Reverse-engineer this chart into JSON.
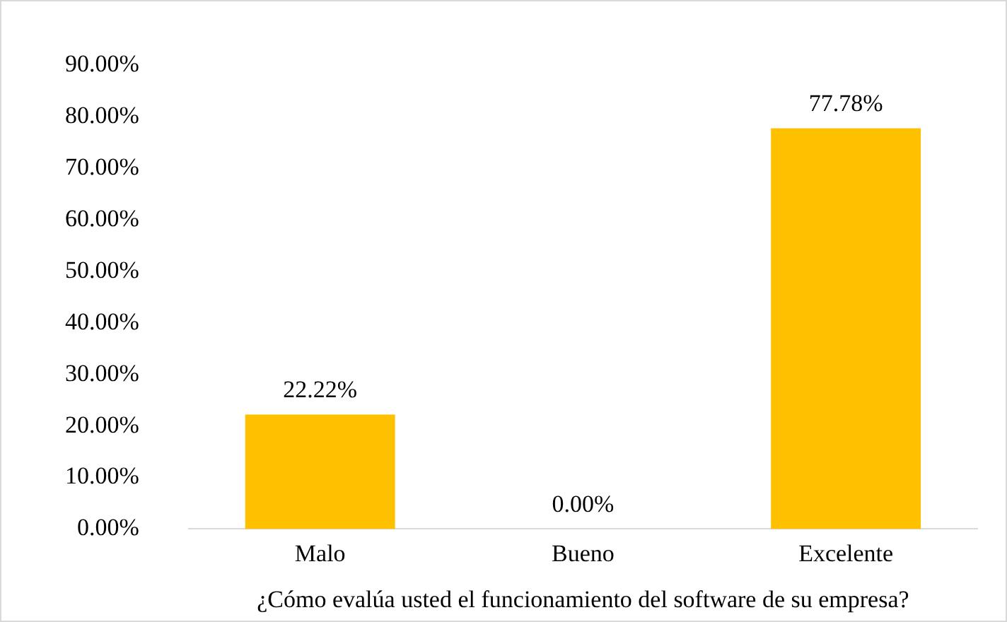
{
  "chart_data": {
    "type": "bar",
    "xlabel": "¿Cómo evalúa usted el funcionamiento del software de su empresa?",
    "categories": [
      "Malo",
      "Bueno",
      "Excelente"
    ],
    "values": [
      22.22,
      0,
      77.78
    ],
    "value_labels": [
      "22.22%",
      "0.00%",
      "77.78%"
    ],
    "color": "#ffc000",
    "ylim": [
      0,
      90
    ],
    "yticks": [
      {
        "value": 0,
        "label": "0.00%"
      },
      {
        "value": 10,
        "label": "10.00%"
      },
      {
        "value": 20,
        "label": "20.00%"
      },
      {
        "value": 30,
        "label": "30.00%"
      },
      {
        "value": 40,
        "label": "40.00%"
      },
      {
        "value": 50,
        "label": "50.00%"
      },
      {
        "value": 60,
        "label": "60.00%"
      },
      {
        "value": 70,
        "label": "70.00%"
      },
      {
        "value": 80,
        "label": "80.00%"
      },
      {
        "value": 90,
        "label": "90.00%"
      }
    ],
    "grid": false,
    "legend": false
  }
}
